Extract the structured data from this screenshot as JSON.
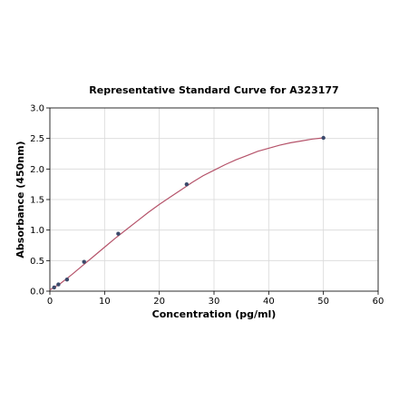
{
  "chart_data": {
    "type": "scatter",
    "title": "Representative Standard Curve for A323177",
    "xlabel": "Concentration (pg/ml)",
    "ylabel": "Absorbance (450nm)",
    "xlim": [
      0,
      60
    ],
    "ylim": [
      0,
      3.0
    ],
    "xticks": [
      "0",
      "10",
      "20",
      "30",
      "40",
      "50",
      "60"
    ],
    "yticks": [
      "0.0",
      "0.5",
      "1.0",
      "1.5",
      "2.0",
      "2.5",
      "3.0"
    ],
    "grid": true,
    "legend": "none",
    "series": [
      {
        "x": [
          0.78,
          1.56,
          3.13,
          6.25,
          12.5,
          25,
          50
        ],
        "y": [
          0.06,
          0.11,
          0.19,
          0.48,
          0.94,
          1.75,
          2.51
        ]
      }
    ],
    "fit_curve": {
      "x": [
        0,
        2,
        4,
        6,
        8,
        10,
        12,
        14,
        16,
        18,
        20,
        22,
        24,
        26,
        28,
        30,
        32,
        34,
        36,
        38,
        40,
        42,
        44,
        46,
        48,
        50
      ],
      "y": [
        0.02,
        0.13,
        0.27,
        0.42,
        0.57,
        0.72,
        0.87,
        1.01,
        1.15,
        1.29,
        1.42,
        1.54,
        1.66,
        1.78,
        1.89,
        1.98,
        2.07,
        2.15,
        2.22,
        2.29,
        2.34,
        2.39,
        2.43,
        2.46,
        2.49,
        2.51
      ]
    },
    "colors": {
      "points": "#3b4a6b",
      "curve": "#b5536a"
    }
  }
}
